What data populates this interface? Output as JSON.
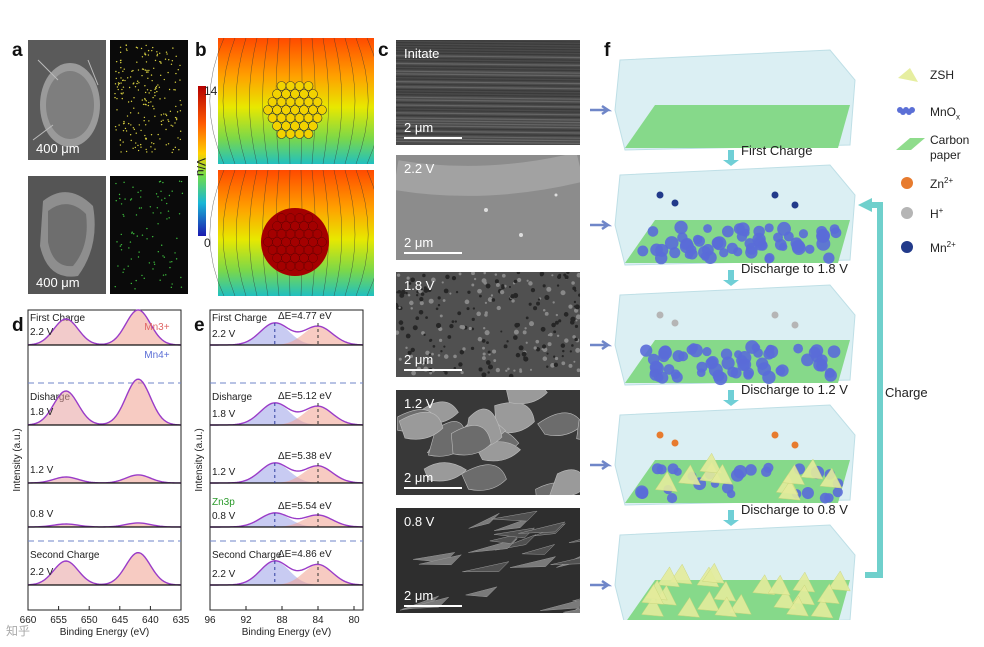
{
  "panel_labels": {
    "a": "a",
    "b": "b",
    "c": "c",
    "d": "d",
    "e": "e",
    "f": "f"
  },
  "panel_a": {
    "scale_top": "400 μm",
    "scale_bottom": "400 μm"
  },
  "panel_b": {
    "colorbar_max": "14",
    "colorbar_min": "0",
    "colorbar_label": "V/u"
  },
  "panel_c": {
    "images": [
      {
        "label": "Initate",
        "scale": "2 μm"
      },
      {
        "label": "2.2 V",
        "scale": "2 μm"
      },
      {
        "label": "1.8 V",
        "scale": "2 μm"
      },
      {
        "label": "1.2 V",
        "scale": "2 μm"
      },
      {
        "label": "0.8 V",
        "scale": "2 μm"
      }
    ]
  },
  "chart_data": [
    {
      "type": "line",
      "panel": "d",
      "xlabel": "Binding Energy (eV)",
      "ylabel": "Intensity (a.u.)",
      "xlim": [
        660,
        635
      ],
      "xticks": [
        "660",
        "655",
        "650",
        "645",
        "640",
        "635"
      ],
      "section_labels": [
        "First Charge",
        "Disharge",
        "Second Charge"
      ],
      "series": [
        {
          "name": "2.2 V",
          "peaks": [
            653.8,
            642.0
          ]
        },
        {
          "name": "1.8 V",
          "peaks": [
            653.8,
            642.0
          ]
        },
        {
          "name": "1.2 V",
          "peaks": [
            653.8,
            642.0
          ]
        },
        {
          "name": "0.8 V",
          "peaks": [
            653.8,
            642.0
          ]
        },
        {
          "name": "2.2 V",
          "peaks": [
            653.8,
            642.0
          ]
        }
      ],
      "annotations": [
        "Mn3+",
        "Mn4+"
      ]
    },
    {
      "type": "line",
      "panel": "e",
      "xlabel": "Binding Energy (eV)",
      "ylabel": "Intensity (a.u.)",
      "xlim": [
        96,
        79
      ],
      "xticks": [
        "96",
        "92",
        "88",
        "84",
        "80"
      ],
      "section_labels": [
        "First Charge",
        "Disharge",
        "Second Charge"
      ],
      "series": [
        {
          "name": "2.2 V",
          "delta_e": "ΔE=4.77 eV",
          "peaks": [
            88.8,
            84.0
          ]
        },
        {
          "name": "1.8 V",
          "delta_e": "ΔE=5.12 eV",
          "peaks": [
            88.8,
            84.0
          ]
        },
        {
          "name": "1.2 V",
          "delta_e": "ΔE=5.38 eV",
          "peaks": [
            88.8,
            84.0
          ]
        },
        {
          "name": "0.8 V",
          "delta_e": "ΔE=5.54 eV",
          "peaks": [
            88.8,
            84.0
          ]
        },
        {
          "name": "2.2 V",
          "delta_e": "ΔE=4.86 eV",
          "peaks": [
            88.8,
            84.0
          ]
        }
      ],
      "annotations": [
        "Zn3p"
      ]
    }
  ],
  "panel_f": {
    "steps": [
      "First Charge",
      "Discharge to 1.8 V",
      "Discharge to 1.2 V",
      "Discharge to 0.8 V"
    ],
    "charge_label": "Charge",
    "legend": [
      {
        "label": "ZSH",
        "color": "#e6eea0"
      },
      {
        "label": "MnOx",
        "color": "#5b6fd6"
      },
      {
        "label": "Carbon paper",
        "color": "#8fdc8c"
      },
      {
        "label": "Zn2+",
        "color": "#e77b2e"
      },
      {
        "label": "H+",
        "color": "#b5b5b5"
      },
      {
        "label": "Mn2+",
        "color": "#223a8a"
      }
    ]
  },
  "watermark": "知乎"
}
